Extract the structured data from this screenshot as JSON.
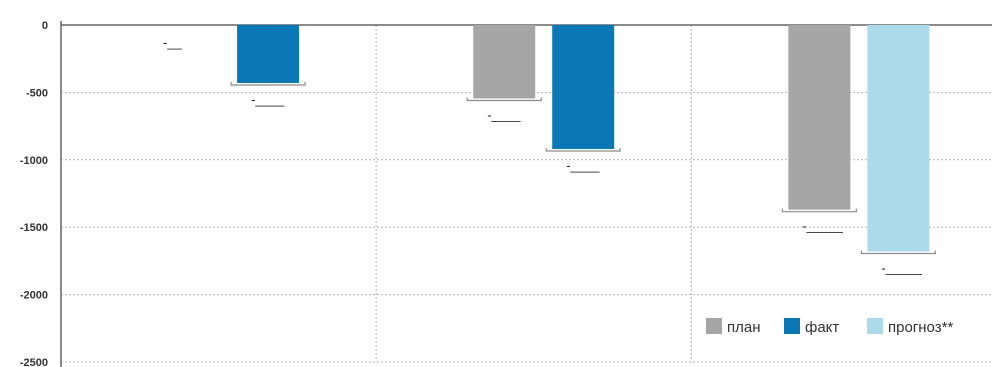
{
  "chart_data": {
    "type": "bar",
    "ylim": [
      -2500,
      0
    ],
    "yticks": [
      0,
      -500,
      -1000,
      -1500,
      -2000,
      -2500
    ],
    "ytick_labels": [
      "0",
      "-500",
      "-1000",
      "-1500",
      "-2000",
      "-2500"
    ],
    "grid": true,
    "legend_position": "bottom-right",
    "categories": [
      "",
      "",
      ""
    ],
    "series": [
      {
        "name": "план",
        "color": "#a6a6a6",
        "values": [
          null,
          -545,
          -1370
        ]
      },
      {
        "name": "факт",
        "color": "#0a78b4",
        "values": [
          -430,
          -920,
          null
        ]
      },
      {
        "name": "прогноз**",
        "color": "#abdaeb",
        "values": [
          null,
          null,
          -1680
        ]
      }
    ],
    "data_labels": [
      [
        "-__",
        "-____",
        "-_____"
      ],
      [
        "-____",
        "-____",
        null
      ],
      [
        null,
        null,
        "-_____"
      ]
    ]
  }
}
